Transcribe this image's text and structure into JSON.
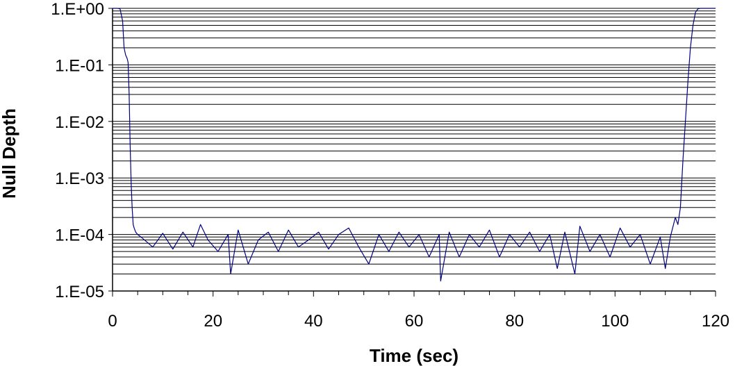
{
  "chart_data": {
    "type": "line",
    "title": "",
    "xlabel": "Time (sec)",
    "ylabel": "Null Depth",
    "xlim": [
      0,
      120
    ],
    "ylim": [
      1e-05,
      1
    ],
    "y_scale": "log",
    "x_ticks": [
      0,
      20,
      40,
      60,
      80,
      100,
      120
    ],
    "x_tick_labels": [
      "0",
      "20",
      "40",
      "60",
      "80",
      "100",
      "120"
    ],
    "y_ticks": [
      1,
      0.1,
      0.01,
      0.001,
      0.0001,
      1e-05
    ],
    "y_tick_labels": [
      "1.E+00",
      "1.E-01",
      "1.E-02",
      "1.E-03",
      "1.E-04",
      "1.E-05"
    ],
    "grid": "horizontal major and minor",
    "legend": "none",
    "line_color": "#000080",
    "series": [
      {
        "name": "",
        "x": [
          0.0,
          0.5,
          1.0,
          1.5,
          2.0,
          2.3,
          2.6,
          2.9,
          3.1,
          3.3,
          3.5,
          3.7,
          3.9,
          4.1,
          4.3,
          4.6,
          5.0,
          6,
          8,
          10,
          12,
          14,
          16,
          17.5,
          19,
          21,
          23,
          23.5,
          25,
          27,
          29,
          31,
          33,
          35,
          37,
          39,
          41,
          43,
          45,
          47,
          49,
          51,
          53,
          55,
          57,
          59,
          61,
          63,
          65,
          65.3,
          67,
          69,
          71,
          73,
          75,
          77,
          79,
          81,
          83,
          85,
          87,
          88.5,
          90,
          92,
          93,
          95,
          97,
          99,
          101,
          103,
          105,
          107,
          109,
          110,
          111,
          112,
          112.5,
          113,
          113.5,
          114,
          114.5,
          115,
          115.5,
          116,
          116.5,
          117,
          118,
          119,
          120
        ],
        "y": [
          1.0,
          1.0,
          1.0,
          0.98,
          0.6,
          0.2,
          0.15,
          0.13,
          0.11,
          0.03,
          0.004,
          0.0008,
          0.0003,
          0.00015,
          0.00013,
          0.00011,
          0.0001,
          8.5e-05,
          6e-05,
          0.000105,
          5.5e-05,
          0.00011,
          6e-05,
          0.00015,
          8e-05,
          5e-05,
          0.0001,
          2e-05,
          0.00012,
          3e-05,
          8e-05,
          0.00011,
          5e-05,
          0.00012,
          6e-05,
          8e-05,
          0.00011,
          5.5e-05,
          0.0001,
          0.00013,
          6e-05,
          3e-05,
          0.0001,
          5e-05,
          0.00011,
          6e-05,
          0.0001,
          4e-05,
          0.0001,
          1.5e-05,
          0.00011,
          4e-05,
          0.0001,
          6e-05,
          0.00012,
          4e-05,
          0.0001,
          6e-05,
          0.00011,
          5e-05,
          0.0001,
          2.5e-05,
          0.00011,
          2e-05,
          0.00014,
          5e-05,
          0.0001,
          4e-05,
          0.00013,
          6e-05,
          0.0001,
          3e-05,
          9e-05,
          2.5e-05,
          9e-05,
          0.0002,
          0.00015,
          0.0003,
          0.002,
          0.01,
          0.05,
          0.2,
          0.5,
          0.85,
          0.98,
          1.0,
          1.0,
          1.0,
          1.0
        ]
      }
    ]
  }
}
